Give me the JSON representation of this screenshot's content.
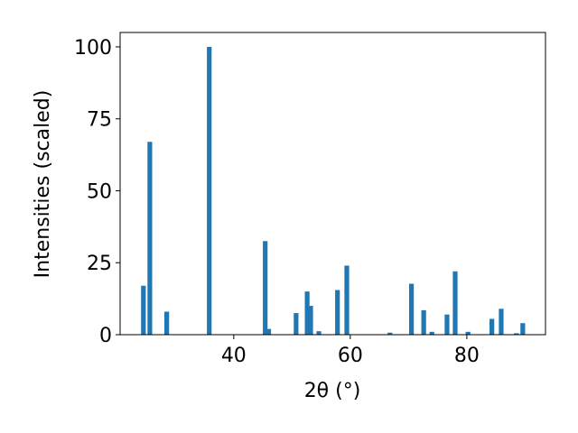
{
  "chart_data": {
    "type": "bar",
    "xlabel": "2θ (°)",
    "ylabel": "Intensities (scaled)",
    "x": [
      24.5,
      25.6,
      28.5,
      35.8,
      45.4,
      46.0,
      50.7,
      52.6,
      53.2,
      54.6,
      57.8,
      59.4,
      66.8,
      70.5,
      72.6,
      74.0,
      76.6,
      78.0,
      80.2,
      84.3,
      85.9,
      88.5,
      89.6
    ],
    "values": [
      17,
      67,
      8,
      100,
      32.5,
      2,
      7.5,
      15,
      10,
      1.2,
      15.5,
      24,
      0.7,
      17.7,
      8.5,
      1,
      7,
      22,
      1,
      5.5,
      9,
      0.5,
      4
    ],
    "color": "#1f77b4",
    "xlim": [
      20.5,
      93.5
    ],
    "xticks": [
      40,
      60,
      80
    ],
    "ylim": [
      0,
      105
    ],
    "yticks": [
      0,
      25,
      50,
      75,
      100
    ]
  }
}
